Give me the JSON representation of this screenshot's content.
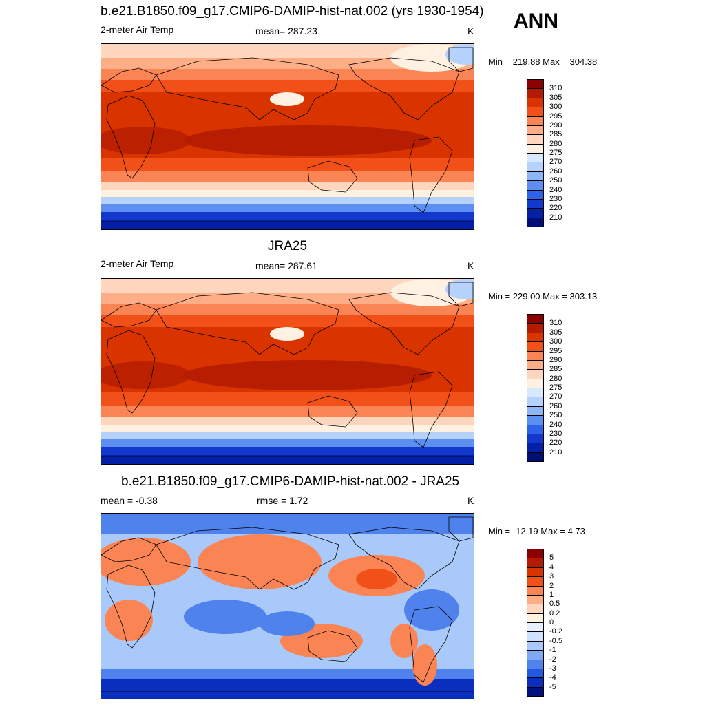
{
  "season": "ANN",
  "panels": [
    {
      "title": "b.e21.B1850.f09_g17.CMIP6-DAMIP-hist-nat.002 (yrs 1930-1954)",
      "left_label": "2-meter Air Temp",
      "center_label": "mean= 287.23",
      "units": "K",
      "minmax": "Min = 219.88 Max = 304.38"
    },
    {
      "title": "JRA25",
      "left_label": "2-meter Air Temp",
      "center_label": "mean= 287.61",
      "units": "K",
      "minmax": "Min = 229.00 Max = 303.13"
    },
    {
      "title": "b.e21.B1850.f09_g17.CMIP6-DAMIP-hist-nat.002 - JRA25",
      "left_label": "mean =  -0.38",
      "center_label": "rmse =   1.72",
      "units": "K",
      "minmax": "Min = -12.19 Max =   4.73"
    }
  ],
  "chart_data": [
    {
      "type": "heatmap",
      "title": "b.e21.B1850.f09_g17.CMIP6-DAMIP-hist-nat.002 (yrs 1930-1954)",
      "variable": "2-meter Air Temp",
      "units": "K",
      "mean": 287.23,
      "min": 219.88,
      "max": 304.38,
      "colorbar_levels": [
        "310",
        "305",
        "300",
        "295",
        "290",
        "285",
        "280",
        "275",
        "270",
        "260",
        "250",
        "240",
        "230",
        "220",
        "210"
      ],
      "colorbar_colors": [
        "#8b0000",
        "#b31b00",
        "#d93300",
        "#f25019",
        "#fa8453",
        "#fdae86",
        "#fdd6bd",
        "#fff1e2",
        "#d8e9ff",
        "#b6d2fb",
        "#8db6f7",
        "#5c8ff0",
        "#2e62e8",
        "#1238cc",
        "#0420a6",
        "#000e78"
      ]
    },
    {
      "type": "heatmap",
      "title": "JRA25",
      "variable": "2-meter Air Temp",
      "units": "K",
      "mean": 287.61,
      "min": 229.0,
      "max": 303.13,
      "colorbar_levels": [
        "310",
        "305",
        "300",
        "295",
        "290",
        "285",
        "280",
        "275",
        "270",
        "260",
        "250",
        "240",
        "230",
        "220",
        "210"
      ],
      "colorbar_colors": [
        "#8b0000",
        "#b31b00",
        "#d93300",
        "#f25019",
        "#fa8453",
        "#fdae86",
        "#fdd6bd",
        "#fff1e2",
        "#d8e9ff",
        "#b6d2fb",
        "#8db6f7",
        "#5c8ff0",
        "#2e62e8",
        "#1238cc",
        "#0420a6",
        "#000e78"
      ]
    },
    {
      "type": "heatmap",
      "title": "b.e21.B1850.f09_g17.CMIP6-DAMIP-hist-nat.002 - JRA25",
      "units": "K",
      "mean": -0.38,
      "rmse": 1.72,
      "min": -12.19,
      "max": 4.73,
      "colorbar_levels": [
        "5",
        "4",
        "3",
        "2",
        "1",
        "0.5",
        "0.2",
        "0",
        "-0.2",
        "-0.5",
        "-1",
        "-2",
        "-3",
        "-4",
        "-5"
      ],
      "colorbar_colors": [
        "#8b0000",
        "#b31b00",
        "#d93300",
        "#f25019",
        "#fa8453",
        "#fdae86",
        "#fdd6bd",
        "#fff1e2",
        "#e6f0ff",
        "#cfe1ff",
        "#a9c9fb",
        "#7fa9f5",
        "#4f82ec",
        "#2358e3",
        "#0a2fbf",
        "#00127f"
      ]
    }
  ]
}
